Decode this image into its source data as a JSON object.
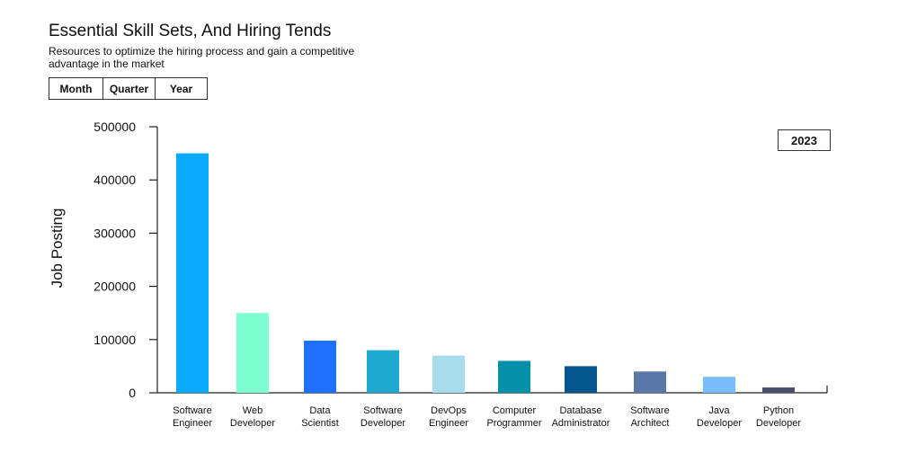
{
  "header": {
    "title": "Essential Skill Sets, And Hiring Tends",
    "subtitle": "Resources to optimize the hiring process and gain a competitive advantage in the market"
  },
  "tabs": [
    {
      "label": "Month"
    },
    {
      "label": "Quarter"
    },
    {
      "label": "Year"
    }
  ],
  "year_badge": "2023",
  "chart_data": {
    "type": "bar",
    "ylabel": "Job Posting",
    "ylim": [
      0,
      500000
    ],
    "yticks": [
      "0",
      "100000",
      "200000",
      "300000",
      "400000",
      "500000"
    ],
    "grid": false,
    "categories": [
      [
        "Software",
        "Engineer"
      ],
      [
        "Web",
        "Developer"
      ],
      [
        "Data",
        "Scientist"
      ],
      [
        "Software",
        "Developer"
      ],
      [
        "DevOps",
        "Engineer"
      ],
      [
        "Computer",
        "Programmer"
      ],
      [
        "Database",
        "Administrator"
      ],
      [
        "Software",
        "Architect"
      ],
      [
        "Java",
        "Developer"
      ],
      [
        "Python",
        "Developer"
      ]
    ],
    "values": [
      450000,
      150000,
      98000,
      80000,
      70000,
      60000,
      50000,
      40000,
      30000,
      10000
    ],
    "colors": [
      "#0aaaff",
      "#7dffd2",
      "#1f70ff",
      "#1ca8cf",
      "#a6dcec",
      "#0590aa",
      "#03558d",
      "#5b76a8",
      "#78beff",
      "#4b4e6a"
    ]
  }
}
